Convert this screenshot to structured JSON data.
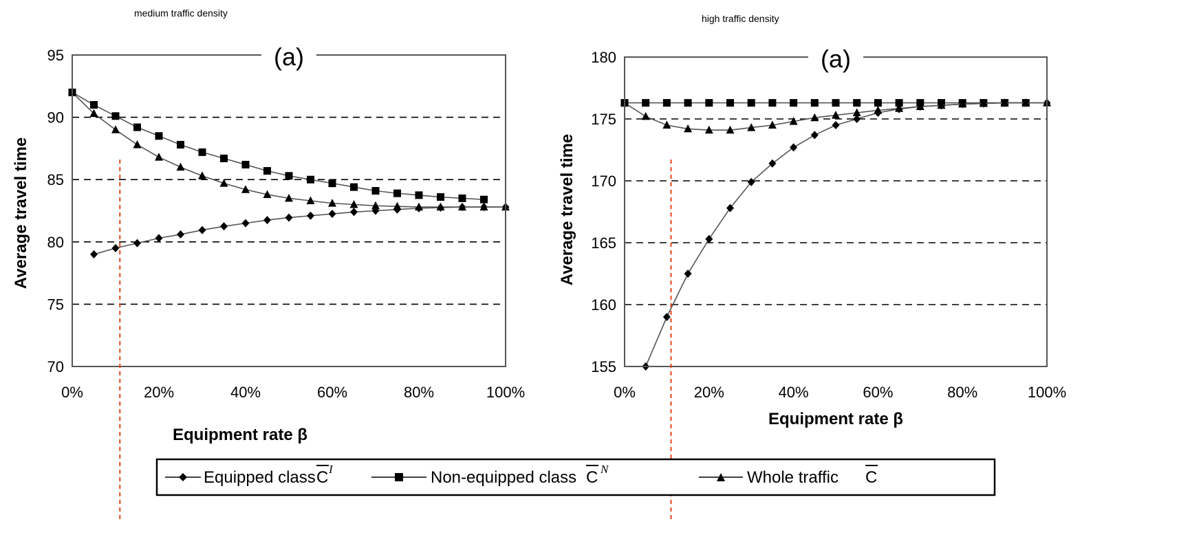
{
  "legend": {
    "equipped": "Equipped class ",
    "nonequipped": "Non-equipped class ",
    "whole": "Whole traffic ",
    "sym_equipped": "C",
    "sup_equipped": "I",
    "sym_nonequipped": "C",
    "sup_nonequipped": "N",
    "sym_whole": "C"
  },
  "colors": {
    "reference_line": "#e8431a",
    "series": "#000000",
    "grid": "#000000"
  },
  "chart_data": [
    {
      "type": "line",
      "title": "medium traffic density",
      "panel_label": "(a)",
      "xlabel": "Equipment rate β",
      "ylabel": "Average travel time",
      "xlim": [
        0,
        100
      ],
      "ylim": [
        70,
        95
      ],
      "x_ticks": [
        "0%",
        "20%",
        "40%",
        "60%",
        "80%",
        "100%"
      ],
      "y_ticks": [
        "70",
        "75",
        "80",
        "85",
        "90",
        "95"
      ],
      "grid": "horizontal dashed",
      "reference_x": 11,
      "series": [
        {
          "key": "equipped",
          "marker": "diamond",
          "x": [
            5,
            10,
            15,
            20,
            25,
            30,
            35,
            40,
            45,
            50,
            55,
            60,
            65,
            70,
            75,
            80,
            85,
            90,
            95,
            100
          ],
          "y": [
            79.0,
            79.5,
            79.9,
            80.3,
            80.6,
            80.95,
            81.25,
            81.5,
            81.75,
            81.95,
            82.1,
            82.25,
            82.4,
            82.5,
            82.6,
            82.7,
            82.75,
            82.8,
            82.8,
            82.8
          ]
        },
        {
          "key": "nonequipped",
          "marker": "square",
          "x": [
            0,
            5,
            10,
            15,
            20,
            25,
            30,
            35,
            40,
            45,
            50,
            55,
            60,
            65,
            70,
            75,
            80,
            85,
            90,
            95
          ],
          "y": [
            92.0,
            91.0,
            90.1,
            89.2,
            88.5,
            87.8,
            87.2,
            86.7,
            86.2,
            85.7,
            85.3,
            85.0,
            84.7,
            84.4,
            84.1,
            83.9,
            83.75,
            83.6,
            83.5,
            83.4
          ]
        },
        {
          "key": "whole",
          "marker": "triangle",
          "x": [
            0,
            5,
            10,
            15,
            20,
            25,
            30,
            35,
            40,
            45,
            50,
            55,
            60,
            65,
            70,
            75,
            80,
            85,
            90,
            95,
            100
          ],
          "y": [
            92.0,
            90.3,
            89.0,
            87.8,
            86.8,
            86.0,
            85.3,
            84.7,
            84.2,
            83.8,
            83.5,
            83.3,
            83.1,
            83.0,
            82.9,
            82.85,
            82.8,
            82.8,
            82.8,
            82.8,
            82.8
          ]
        }
      ]
    },
    {
      "type": "line",
      "title": "high traffic density",
      "panel_label": "(a)",
      "xlabel": "Equipment rate β",
      "ylabel": "Average travel time",
      "xlim": [
        0,
        100
      ],
      "ylim": [
        155,
        180
      ],
      "x_ticks": [
        "0%",
        "20%",
        "40%",
        "60%",
        "80%",
        "100%"
      ],
      "y_ticks": [
        "155",
        "160",
        "165",
        "170",
        "175",
        "180"
      ],
      "grid": "horizontal dashed",
      "reference_x": 11,
      "series": [
        {
          "key": "equipped",
          "marker": "diamond",
          "x": [
            5,
            10,
            15,
            20,
            25,
            30,
            35,
            40,
            45,
            50,
            55,
            60,
            65,
            70,
            75,
            80,
            85,
            90,
            95,
            100
          ],
          "y": [
            155.0,
            159.0,
            162.5,
            165.3,
            167.8,
            169.9,
            171.4,
            172.7,
            173.7,
            174.5,
            175.0,
            175.5,
            175.8,
            176.0,
            176.1,
            176.2,
            176.25,
            176.3,
            176.3,
            176.3
          ]
        },
        {
          "key": "nonequipped",
          "marker": "square",
          "x": [
            0,
            5,
            10,
            15,
            20,
            25,
            30,
            35,
            40,
            45,
            50,
            55,
            60,
            65,
            70,
            75,
            80,
            85,
            90,
            95
          ],
          "y": [
            176.3,
            176.3,
            176.3,
            176.3,
            176.3,
            176.3,
            176.3,
            176.3,
            176.3,
            176.3,
            176.3,
            176.3,
            176.3,
            176.3,
            176.3,
            176.3,
            176.3,
            176.3,
            176.3,
            176.3
          ]
        },
        {
          "key": "whole",
          "marker": "triangle",
          "x": [
            0,
            5,
            10,
            15,
            20,
            25,
            30,
            35,
            40,
            45,
            50,
            55,
            60,
            65,
            70,
            75,
            80,
            85,
            90,
            95,
            100
          ],
          "y": [
            176.3,
            175.2,
            174.5,
            174.2,
            174.1,
            174.1,
            174.3,
            174.5,
            174.8,
            175.1,
            175.3,
            175.5,
            175.7,
            175.85,
            176.0,
            176.1,
            176.2,
            176.25,
            176.3,
            176.3,
            176.3
          ]
        }
      ]
    }
  ]
}
